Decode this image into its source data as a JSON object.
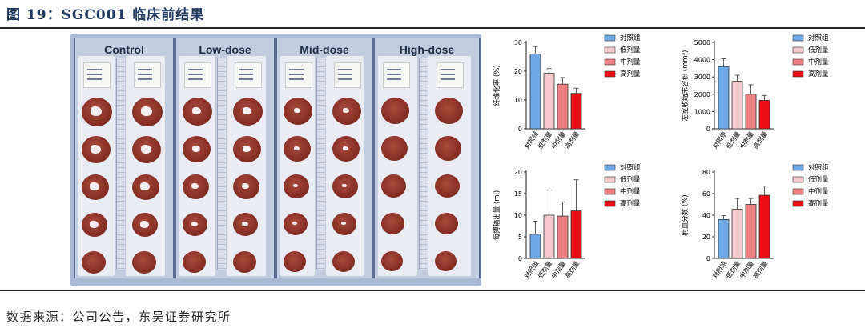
{
  "figure": {
    "title": "图 19：SGC001 临床前结果"
  },
  "source": "数据来源：公司公告，东吴证券研究所",
  "photo": {
    "columns": [
      {
        "label": "Control"
      },
      {
        "label": "Low-dose"
      },
      {
        "label": "Mid-dose"
      },
      {
        "label": "High-dose"
      }
    ]
  },
  "colors": {
    "control": "#6ea8e6",
    "low": "#f6c9cd",
    "mid": "#f07f82",
    "high": "#e80f17"
  },
  "chart_data": [
    {
      "type": "bar",
      "categories": [
        "对照组",
        "低剂量",
        "中剂量",
        "高剂量"
      ],
      "values": [
        26,
        19.3,
        15.5,
        12.3
      ],
      "errors": [
        2.6,
        1.6,
        2.3,
        1.8
      ],
      "xlabel": "",
      "ylabel": "纤维化率 (%)",
      "ylim": [
        0,
        30
      ],
      "yticks": [
        0,
        10,
        20,
        30
      ],
      "legend": "right"
    },
    {
      "type": "bar",
      "categories": [
        "对照组",
        "低剂量",
        "中剂量",
        "高剂量"
      ],
      "values": [
        3600,
        2750,
        2000,
        1650
      ],
      "errors": [
        450,
        350,
        550,
        280
      ],
      "xlabel": "",
      "ylabel": "左室收缩末容积 (mm³)",
      "ylim": [
        0,
        5000
      ],
      "yticks": [
        0,
        1000,
        2000,
        3000,
        4000,
        5000
      ],
      "legend": "right"
    },
    {
      "type": "bar",
      "categories": [
        "对照组",
        "低剂量",
        "中剂量",
        "高剂量"
      ],
      "values": [
        5.6,
        10,
        9.8,
        11
      ],
      "errors": [
        3,
        5.8,
        3.3,
        7.2
      ],
      "xlabel": "",
      "ylabel": "每搏输出量 (ml)",
      "ylim": [
        0,
        20
      ],
      "yticks": [
        0,
        5,
        10,
        15,
        20
      ],
      "legend": "right"
    },
    {
      "type": "bar",
      "categories": [
        "对照组",
        "低剂量",
        "中剂量",
        "高剂量"
      ],
      "values": [
        36,
        45.5,
        50,
        58.5
      ],
      "errors": [
        3.5,
        10,
        5.5,
        8.5
      ],
      "xlabel": "",
      "ylabel": "射血分数 (%)",
      "ylim": [
        0,
        80
      ],
      "yticks": [
        0,
        20,
        40,
        60,
        80
      ],
      "legend": "right"
    }
  ]
}
